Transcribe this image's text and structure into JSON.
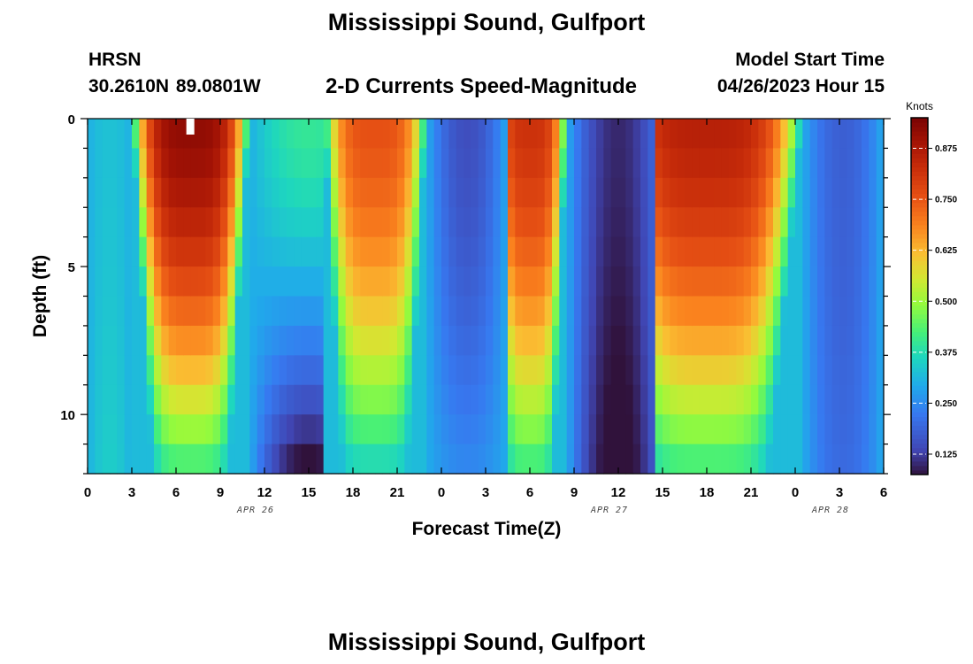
{
  "header": {
    "title": "Mississippi Sound, Gulfport",
    "station": "HRSN",
    "coords": "30.2610N  89.0801W",
    "subtitle": "2-D Currents Speed-Magnitude",
    "start_label": "Model Start Time",
    "start_time": "04/26/2023 Hour 15",
    "title_repeat": "Mississippi Sound, Gulfport"
  },
  "chart_data": {
    "type": "heatmap",
    "title": "2-D Currents Speed-Magnitude",
    "xlabel": "Forecast Time(Z)",
    "ylabel": "Depth (ft)",
    "x_range_hours": [
      0,
      54
    ],
    "x_ticks": [
      {
        "h": 0,
        "label": "0"
      },
      {
        "h": 3,
        "label": "3"
      },
      {
        "h": 6,
        "label": "6"
      },
      {
        "h": 9,
        "label": "9"
      },
      {
        "h": 12,
        "label": "12"
      },
      {
        "h": 15,
        "label": "15"
      },
      {
        "h": 18,
        "label": "18"
      },
      {
        "h": 21,
        "label": "21"
      },
      {
        "h": 24,
        "label": "0"
      },
      {
        "h": 27,
        "label": "3"
      },
      {
        "h": 30,
        "label": "6"
      },
      {
        "h": 33,
        "label": "9"
      },
      {
        "h": 36,
        "label": "12"
      },
      {
        "h": 39,
        "label": "15"
      },
      {
        "h": 42,
        "label": "18"
      },
      {
        "h": 45,
        "label": "21"
      },
      {
        "h": 48,
        "label": "0"
      },
      {
        "h": 51,
        "label": "3"
      },
      {
        "h": 54,
        "label": "6"
      }
    ],
    "date_labels": [
      {
        "h": 12,
        "label": "APR 26"
      },
      {
        "h": 36,
        "label": "APR 27"
      },
      {
        "h": 51,
        "label": "APR 28"
      }
    ],
    "y_range_ft": [
      0,
      12
    ],
    "y_ticks": [
      0,
      5,
      10
    ],
    "colorbar": {
      "label": "Knots",
      "min": 0.075,
      "max": 0.95,
      "ticks": [
        0.125,
        0.25,
        0.375,
        0.5,
        0.625,
        0.75,
        0.875
      ],
      "tick_labels": [
        "0.125",
        "0.250",
        "0.375",
        "0.500",
        "0.625",
        "0.750",
        "0.875"
      ]
    },
    "time_step_hours": 0.5,
    "depth_layers": 12,
    "phases_surface_to_bottom": [
      {
        "start_h": 0,
        "end_h": 3,
        "speed_surface": 0.33,
        "speed_bottom": 0.35
      },
      {
        "start_h": 3,
        "end_h": 11,
        "speed_surface": 0.92,
        "speed_bottom": 0.4,
        "peak_h": 7
      },
      {
        "start_h": 11,
        "end_h": 16,
        "speed_surface": 0.4,
        "speed_bottom": 0.05,
        "min_h": 15
      },
      {
        "start_h": 16,
        "end_h": 23,
        "speed_surface": 0.76,
        "speed_bottom": 0.35,
        "peak_h": 19.5
      },
      {
        "start_h": 23,
        "end_h": 28.5,
        "speed_surface": 0.15,
        "speed_bottom": 0.25
      },
      {
        "start_h": 28.5,
        "end_h": 32.5,
        "speed_surface": 0.82,
        "speed_bottom": 0.4,
        "peak_h": 30
      },
      {
        "start_h": 32.5,
        "end_h": 38.5,
        "speed_surface": 0.1,
        "speed_bottom": 0.05,
        "min_h": 36
      },
      {
        "start_h": 38.5,
        "end_h": 48.5,
        "speed_surface": 0.86,
        "speed_bottom": 0.4,
        "peak_h": 42
      },
      {
        "start_h": 48.5,
        "end_h": 54,
        "speed_surface": 0.18,
        "speed_bottom": 0.2
      }
    ]
  }
}
